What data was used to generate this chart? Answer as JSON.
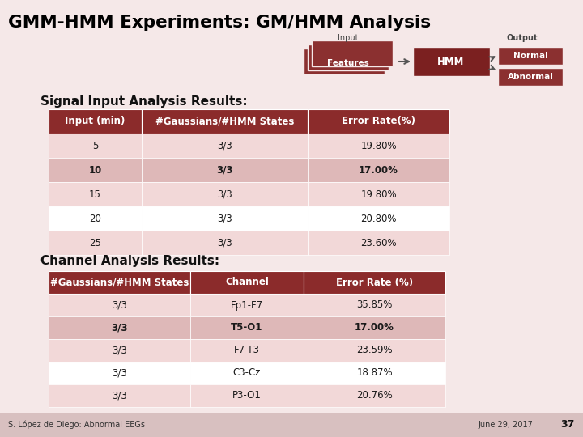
{
  "title": "GMM-HMM Experiments: GM/HMM Analysis",
  "bg_color": "#f5e8e8",
  "title_color": "#000000",
  "signal_section_title": "Signal Input Analysis Results:",
  "channel_section_title": "Channel Analysis Results:",
  "signal_headers": [
    "Input (min)",
    "#Gaussians/#HMM States",
    "Error Rate(%)"
  ],
  "signal_rows": [
    [
      "5",
      "3/3",
      "19.80%"
    ],
    [
      "10",
      "3/3",
      "17.00%"
    ],
    [
      "15",
      "3/3",
      "19.80%"
    ],
    [
      "20",
      "3/3",
      "20.80%"
    ],
    [
      "25",
      "3/3",
      "23.60%"
    ]
  ],
  "signal_bold_row": 1,
  "channel_headers": [
    "#Gaussians/#HMM States",
    "Channel",
    "Error Rate (%)"
  ],
  "channel_rows": [
    [
      "3/3",
      "Fp1-F7",
      "35.85%"
    ],
    [
      "3/3",
      "T5-O1",
      "17.00%"
    ],
    [
      "3/3",
      "F7-T3",
      "23.59%"
    ],
    [
      "3/3",
      "C3-Cz",
      "18.87%"
    ],
    [
      "3/3",
      "P3-O1",
      "20.76%"
    ]
  ],
  "channel_bold_row": 1,
  "header_bg": "#8B2B2B",
  "header_fg": "#FFFFFF",
  "row_alt1": "#F2D8D8",
  "row_alt2": "#FFFFFF",
  "bold_row_bg": "#DEB8B8",
  "footer_left": "S. López de Diego: Abnormal EEGs",
  "footer_right": "June 29, 2017",
  "footer_num": "37",
  "diagram_color_features": "#8B3030",
  "diagram_color_hmm": "#7B2020",
  "diagram_color_output": "#8B3030"
}
